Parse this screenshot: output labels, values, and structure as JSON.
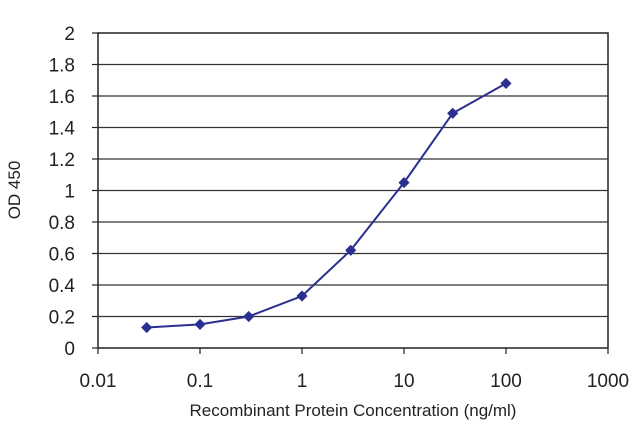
{
  "chart_data": {
    "type": "line",
    "title": "",
    "xlabel": "Recombinant Protein Concentration (ng/ml)",
    "ylabel": "OD 450",
    "x_scale": "log",
    "xlim": [
      0.01,
      1000
    ],
    "ylim": [
      0,
      2
    ],
    "x_tick_labels": [
      "0.01",
      "0.1",
      "1",
      "10",
      "100",
      "1000"
    ],
    "y_tick_labels": [
      "0",
      "0.2",
      "0.4",
      "0.6",
      "0.8",
      "1",
      "1.2",
      "1.4",
      "1.6",
      "1.8",
      "2"
    ],
    "grid": "horizontal",
    "legend": "none",
    "series": [
      {
        "color": "#2b2f8f",
        "marker": "diamond",
        "x": [
          0.03,
          0.1,
          0.3,
          1,
          3,
          10,
          30,
          100
        ],
        "y": [
          0.13,
          0.15,
          0.2,
          0.33,
          0.62,
          1.05,
          1.49,
          1.68
        ]
      }
    ]
  }
}
